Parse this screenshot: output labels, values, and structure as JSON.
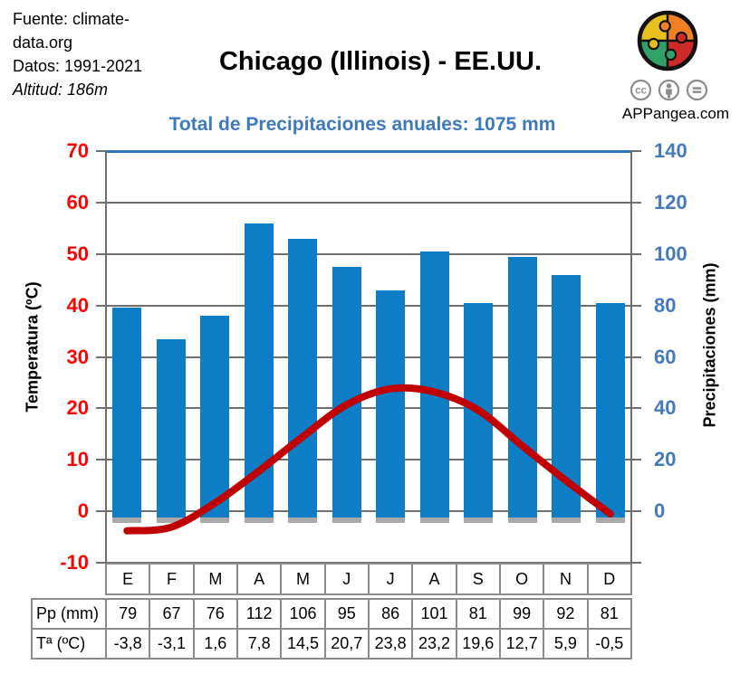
{
  "header": {
    "source_line1": "Fuente: climate-",
    "source_line2": "data.org",
    "source_line3": "Datos: 1991-2021",
    "source_line4": "Altitud: 186m",
    "title": "Chicago (Illinois) - EE.UU.",
    "subtitle": "Total de Precipitaciones anuales: 1075 mm",
    "brand": "APPangea.com",
    "license_icons": [
      "cc-icon",
      "attribution-icon",
      "no-derivatives-icon"
    ]
  },
  "chart_data": {
    "type": "bar",
    "categories": [
      "E",
      "F",
      "M",
      "A",
      "M",
      "J",
      "J",
      "A",
      "S",
      "O",
      "N",
      "D"
    ],
    "series": [
      {
        "name": "Pp (mm)",
        "type": "bar",
        "axis": "right",
        "values": [
          79,
          67,
          76,
          112,
          106,
          95,
          86,
          101,
          81,
          99,
          92,
          81
        ]
      },
      {
        "name": "Tª (ºC)",
        "type": "line",
        "axis": "left",
        "values": [
          -3.8,
          -3.1,
          1.6,
          7.8,
          14.5,
          20.7,
          23.8,
          23.2,
          19.6,
          12.7,
          5.9,
          -0.5
        ]
      }
    ],
    "left_axis": {
      "label": "Temperatura (ºC)",
      "min": -10,
      "max": 70,
      "step": 10,
      "ticks": [
        70,
        60,
        50,
        40,
        30,
        20,
        10,
        0,
        -10
      ]
    },
    "right_axis": {
      "label": "Precipitaciones (mm)",
      "min": -20,
      "max": 140,
      "step": 20,
      "ticks": [
        140,
        120,
        100,
        80,
        60,
        40,
        20,
        0
      ]
    },
    "grid": true,
    "legend_position": "none",
    "annual_total_mm": 1075
  },
  "table": {
    "months": [
      "E",
      "F",
      "M",
      "A",
      "M",
      "J",
      "J",
      "A",
      "S",
      "O",
      "N",
      "D"
    ],
    "row1_label": "Pp (mm)",
    "row1_values": [
      "79",
      "67",
      "76",
      "112",
      "106",
      "95",
      "86",
      "101",
      "81",
      "99",
      "92",
      "81"
    ],
    "row2_label": "Tª (ºC)",
    "row2_values": [
      "-3,8",
      "-3,1",
      "1,6",
      "7,8",
      "14,5",
      "20,7",
      "23,8",
      "23,2",
      "19,6",
      "12,7",
      "5,9",
      "-0,5"
    ]
  },
  "colors": {
    "bar": "#0D7DC6",
    "bar_shadow": "#A9A9A9",
    "line": "#C00000",
    "left_axis_labels": "#FF0000",
    "right_axis_labels": "#4579BD",
    "subtitle": "#3E79BE",
    "grid": "#6F6F6F",
    "plot_top_border": "#2E75B6",
    "table_border": "#8C8C8C",
    "logo_yellow": "#E7C01F",
    "logo_orange": "#EF8023",
    "logo_red": "#CC2B27",
    "logo_green": "#33A06A"
  }
}
